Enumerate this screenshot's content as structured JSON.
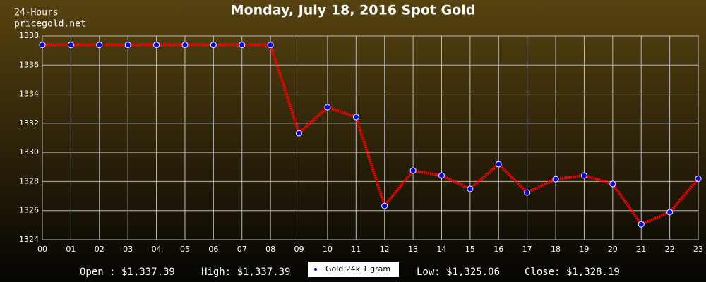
{
  "chart_data": {
    "type": "line",
    "title": "Monday, July 18, 2016 Spot Gold",
    "corner_labels": [
      "24-Hours",
      "pricegold.net"
    ],
    "categories": [
      "00",
      "01",
      "02",
      "03",
      "04",
      "05",
      "06",
      "07",
      "08",
      "09",
      "10",
      "11",
      "12",
      "13",
      "14",
      "15",
      "16",
      "17",
      "18",
      "19",
      "20",
      "21",
      "22",
      "23"
    ],
    "series": [
      {
        "name": "Gold 24k 1 gram",
        "color": "#ff0000",
        "marker_color": "#0000ff",
        "values": [
          1337.39,
          1337.39,
          1337.39,
          1337.39,
          1337.39,
          1337.39,
          1337.39,
          1337.39,
          1337.39,
          1331.31,
          1333.11,
          1332.43,
          1326.32,
          1328.75,
          1328.41,
          1327.49,
          1329.18,
          1327.24,
          1328.16,
          1328.41,
          1327.83,
          1325.06,
          1325.89,
          1328.19
        ]
      }
    ],
    "ylim": [
      1324,
      1338
    ],
    "yticks": [
      1324,
      1326,
      1328,
      1330,
      1332,
      1334,
      1336,
      1338
    ],
    "grid": true,
    "stats_left": [
      "Open : $1,337.39",
      "High: $1,337.39"
    ],
    "stats_right": [
      "Low: $1,325.06",
      "Close: $1,328.19"
    ]
  }
}
